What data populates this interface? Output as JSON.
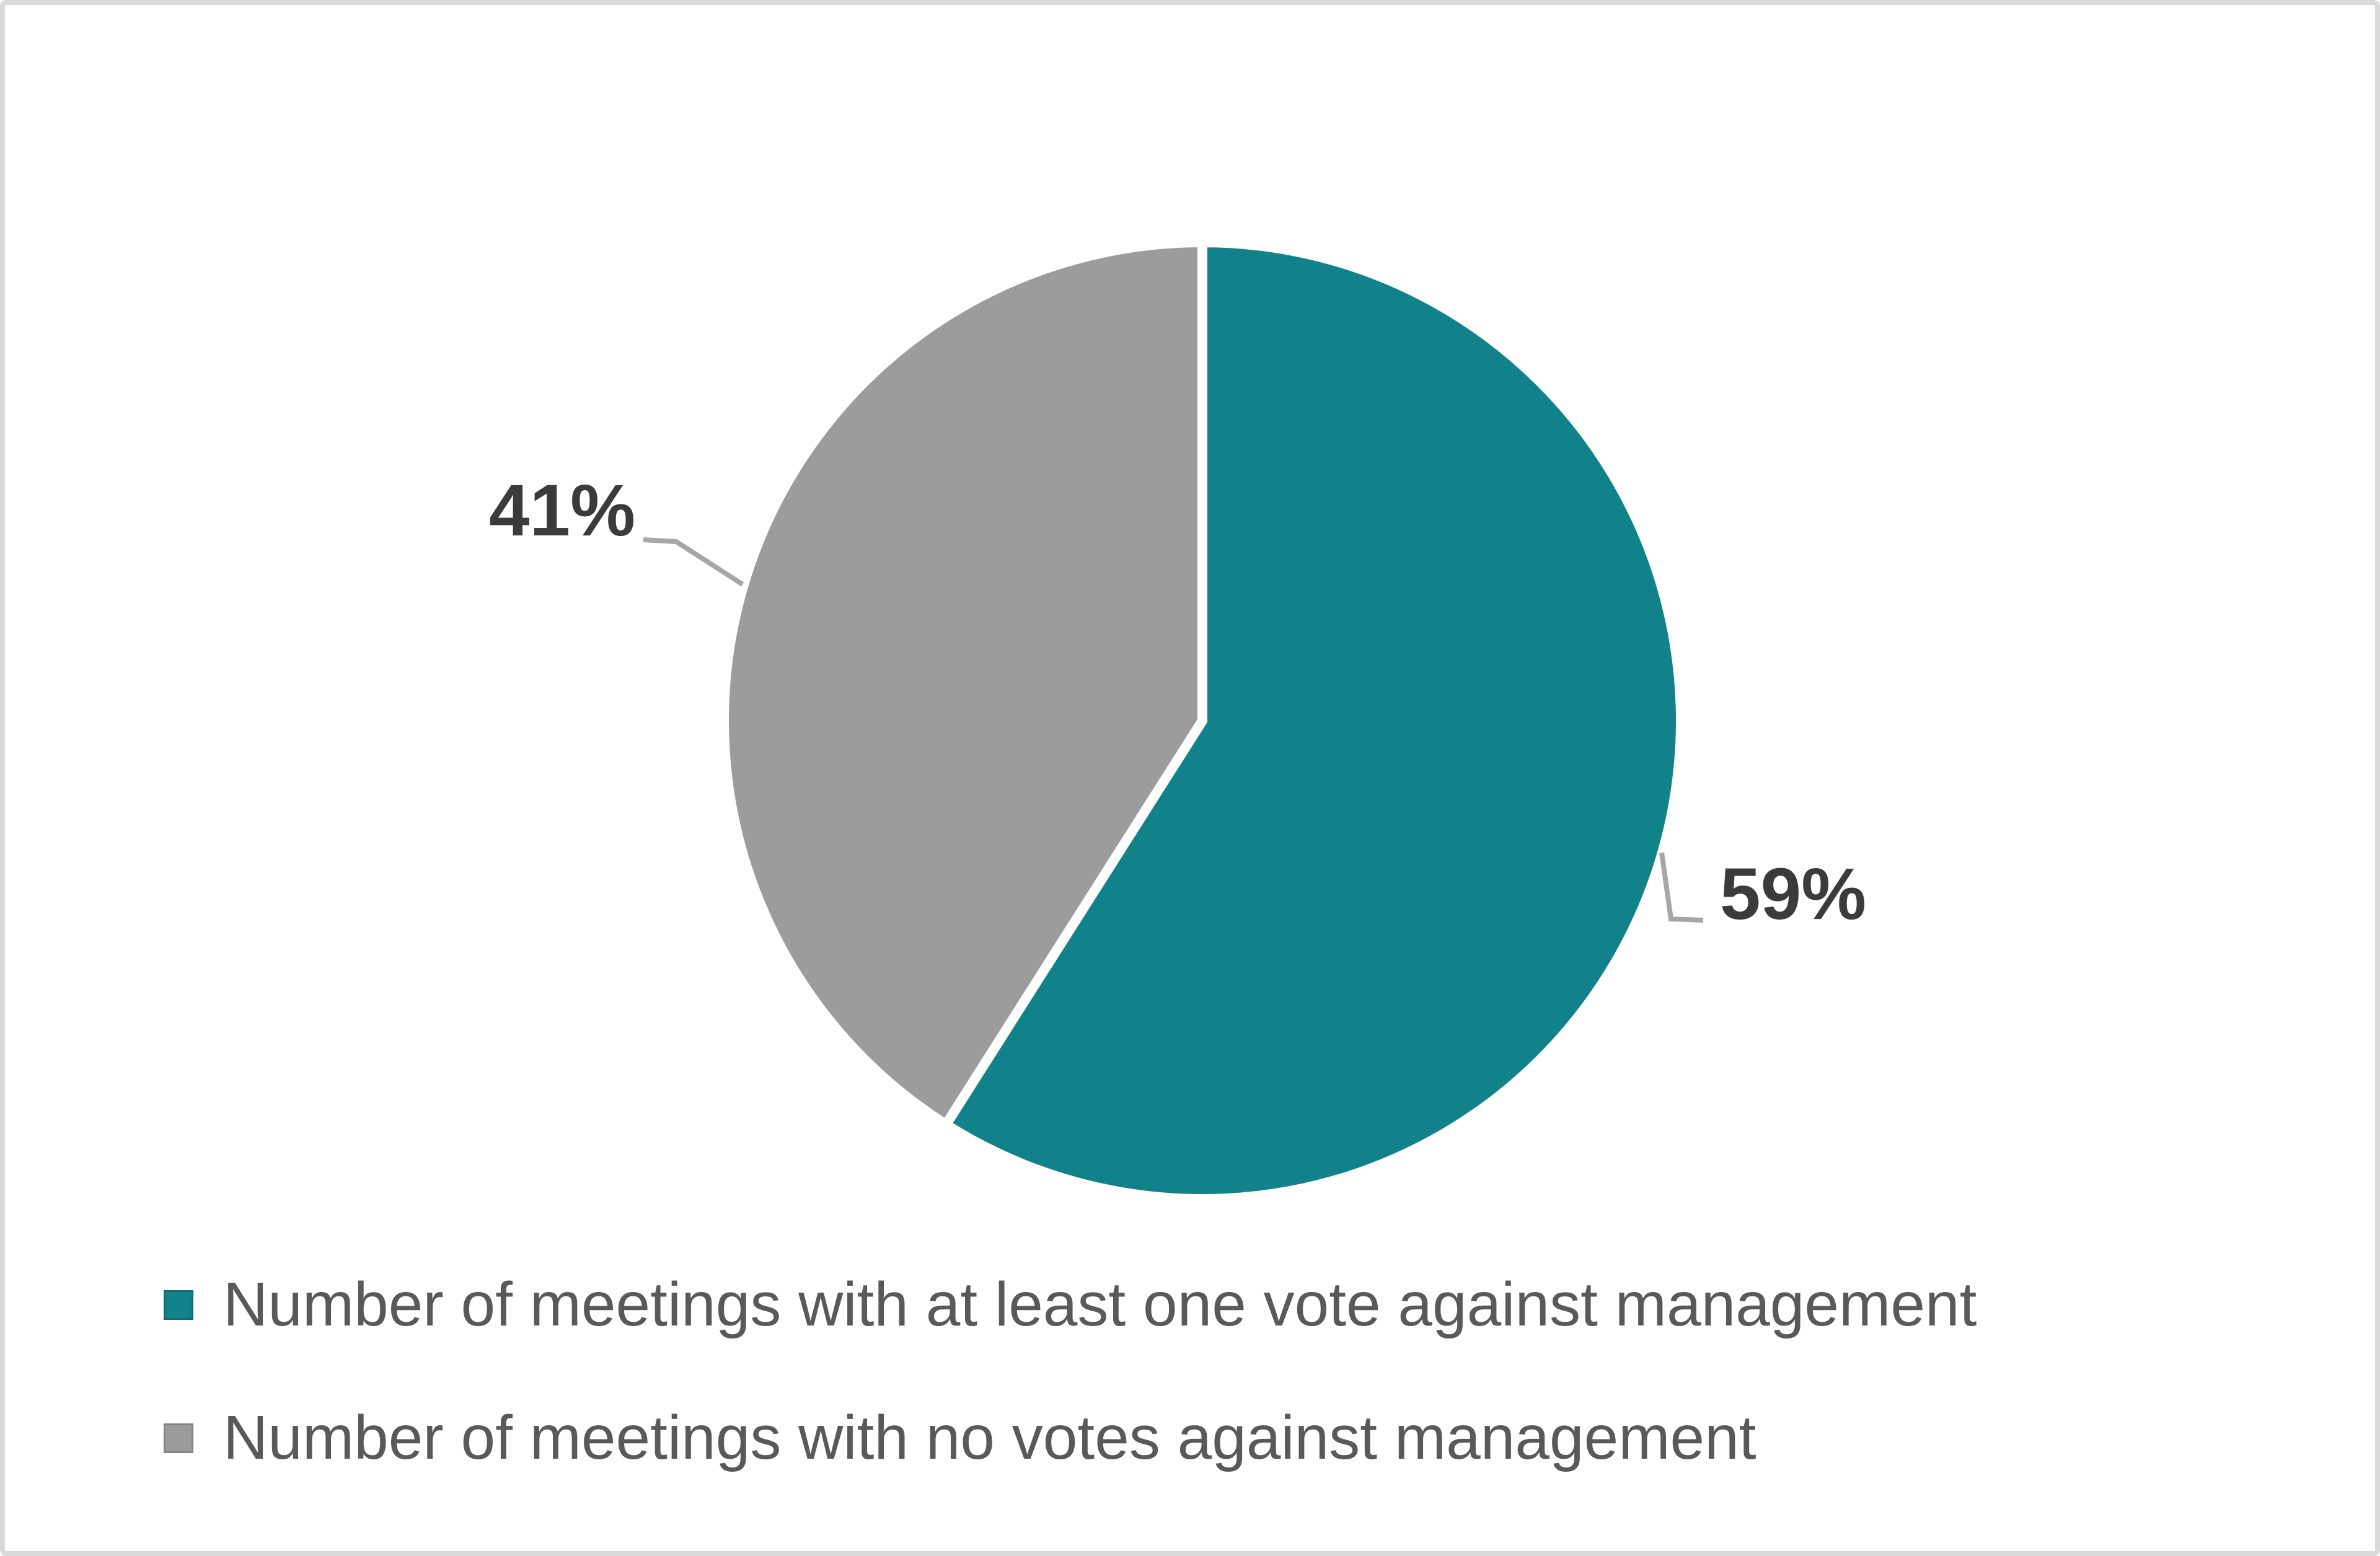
{
  "chart_data": {
    "type": "pie",
    "title": "",
    "series": [
      {
        "name": "Number of meetings with at least one vote against management",
        "value": 59,
        "data_label": "59%",
        "color": "#12828A"
      },
      {
        "name": "Number of meetings with no votes against management",
        "value": 41,
        "data_label": "41%",
        "color": "#9C9C9C"
      }
    ],
    "start_angle_deg": 0,
    "direction": "clockwise",
    "data_label_placement": "outside-with-leader-lines",
    "legend_position": "bottom-left",
    "styles": {
      "slice_separator_color": "#FFFFFF",
      "leader_line_color": "#A6A6A6",
      "data_label_color": "#3B3B3B",
      "legend_text_color": "#595959",
      "frame_border_color": "#D9D9D9",
      "background_color": "#FFFFFF"
    }
  }
}
